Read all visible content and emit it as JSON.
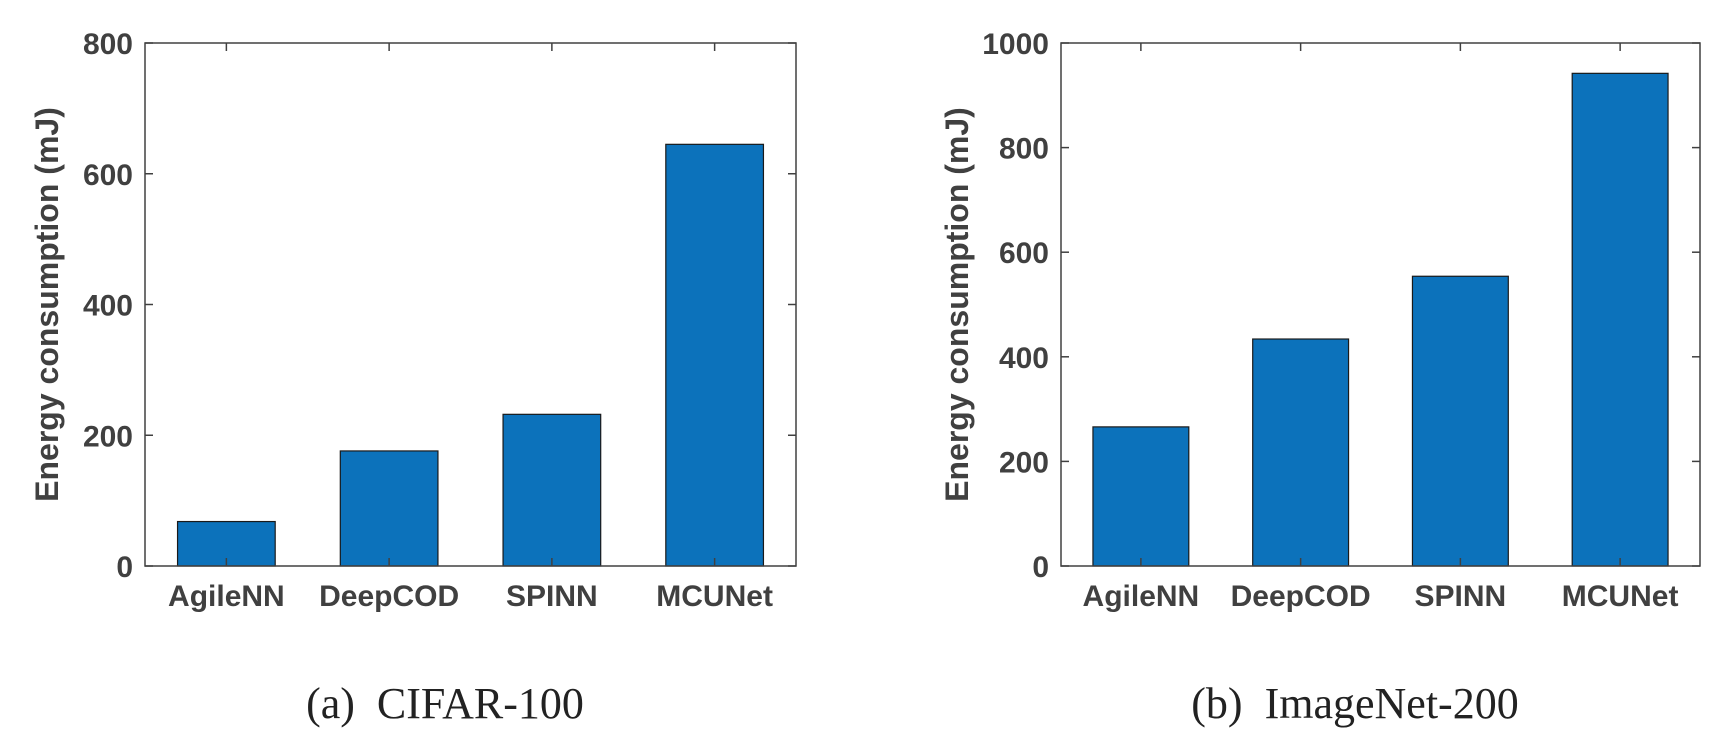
{
  "colors": {
    "bar": "#0c72bb",
    "axis": "#404040",
    "text": "#404040"
  },
  "chart_data": [
    {
      "type": "bar",
      "categories": [
        "AgileNN",
        "DeepCOD",
        "SPINN",
        "MCUNet"
      ],
      "values": [
        68,
        176,
        232,
        645
      ],
      "ylabel": "Energy consumption (mJ)",
      "ylim": [
        0,
        800
      ],
      "yticks": [
        0,
        200,
        400,
        600,
        800
      ],
      "caption": "(a)  CIFAR-100",
      "grid": false
    },
    {
      "type": "bar",
      "categories": [
        "AgileNN",
        "DeepCOD",
        "SPINN",
        "MCUNet"
      ],
      "values": [
        266,
        434,
        554,
        942
      ],
      "ylabel": "Energy consumption (mJ)",
      "ylim": [
        0,
        1000
      ],
      "yticks": [
        0,
        200,
        400,
        600,
        800,
        1000
      ],
      "caption": "(b)  ImageNet-200",
      "grid": false
    }
  ]
}
